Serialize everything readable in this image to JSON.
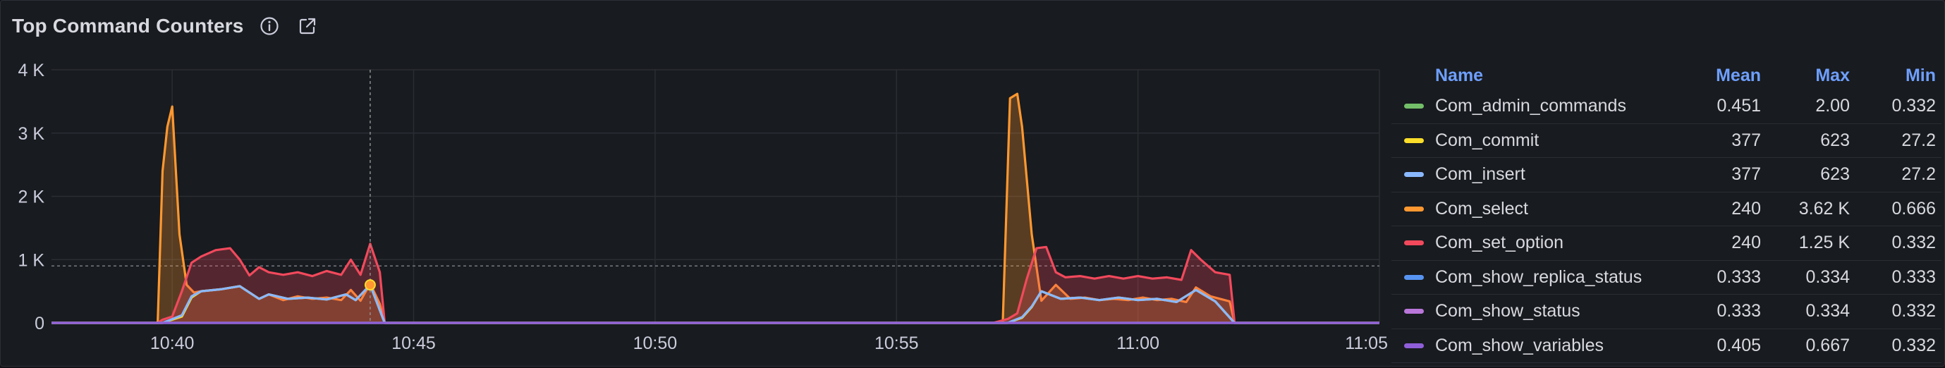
{
  "panel": {
    "title": "Top Command Counters",
    "info_icon": "info-circle-icon",
    "link_icon": "external-link-icon"
  },
  "colors": {
    "background": "#181b1f",
    "grid": "#2a2d33",
    "axis_text": "#ccccdc",
    "header_blue": "#6e9fff"
  },
  "legend": {
    "columns": [
      "Name",
      "Mean",
      "Max",
      "Min"
    ],
    "rows": [
      {
        "name": "Com_admin_commands",
        "color": "#73bf69",
        "mean": "0.451",
        "max": "2.00",
        "min": "0.332"
      },
      {
        "name": "Com_commit",
        "color": "#fade2a",
        "mean": "377",
        "max": "623",
        "min": "27.2"
      },
      {
        "name": "Com_insert",
        "color": "#8ab8ff",
        "mean": "377",
        "max": "623",
        "min": "27.2"
      },
      {
        "name": "Com_select",
        "color": "#ff9830",
        "mean": "240",
        "max": "3.62 K",
        "min": "0.666"
      },
      {
        "name": "Com_set_option",
        "color": "#f2495c",
        "mean": "240",
        "max": "1.25 K",
        "min": "0.332"
      },
      {
        "name": "Com_show_replica_status",
        "color": "#5794f2",
        "mean": "0.333",
        "max": "0.334",
        "min": "0.333"
      },
      {
        "name": "Com_show_status",
        "color": "#b877d9",
        "mean": "0.333",
        "max": "0.334",
        "min": "0.332"
      },
      {
        "name": "Com_show_variables",
        "color": "#8f5fd9",
        "mean": "0.405",
        "max": "0.667",
        "min": "0.332"
      }
    ]
  },
  "chart_data": {
    "type": "area",
    "title": "Top Command Counters",
    "xlabel": "",
    "ylabel": "",
    "ylim": [
      0,
      4000
    ],
    "y_ticks": [
      {
        "value": 0,
        "label": "0"
      },
      {
        "value": 1000,
        "label": "1 K"
      },
      {
        "value": 2000,
        "label": "2 K"
      },
      {
        "value": 3000,
        "label": "3 K"
      },
      {
        "value": 4000,
        "label": "4 K"
      }
    ],
    "x_unit": "minutes after 10:00",
    "xlim": [
      37.5,
      65.0
    ],
    "x_ticks": [
      {
        "value": 40,
        "label": "10:40"
      },
      {
        "value": 45,
        "label": "10:45"
      },
      {
        "value": 50,
        "label": "10:50"
      },
      {
        "value": 55,
        "label": "10:55"
      },
      {
        "value": 60,
        "label": "11:00"
      },
      {
        "value": 65,
        "label": "11:05"
      }
    ],
    "grid": true,
    "legend_position": "right",
    "threshold_line": 900,
    "crosshair_x": 44.1,
    "series": [
      {
        "name": "Com_select",
        "color": "#ff9830",
        "fill": true,
        "x": [
          37.5,
          39.7,
          39.8,
          39.9,
          40.0,
          40.15,
          40.3,
          40.45,
          40.6,
          41.0,
          41.4,
          41.8,
          42.0,
          42.3,
          42.6,
          42.9,
          43.2,
          43.5,
          43.7,
          43.9,
          44.1,
          44.3,
          44.4,
          57.0,
          57.2,
          57.35,
          57.5,
          57.6,
          57.8,
          58.0,
          58.3,
          58.6,
          58.9,
          59.2,
          59.5,
          59.8,
          60.1,
          60.4,
          60.7,
          61.0,
          61.2,
          61.5,
          61.9,
          62.0,
          65.0
        ],
        "y": [
          0,
          0,
          2400,
          3100,
          3420,
          1400,
          600,
          480,
          500,
          530,
          580,
          380,
          450,
          360,
          420,
          380,
          400,
          360,
          520,
          350,
          620,
          300,
          0,
          0,
          0,
          3550,
          3620,
          3100,
          1400,
          350,
          600,
          380,
          400,
          360,
          380,
          360,
          400,
          360,
          380,
          330,
          560,
          420,
          340,
          0,
          0
        ]
      },
      {
        "name": "Com_set_option",
        "color": "#f2495c",
        "fill": true,
        "x": [
          37.5,
          39.7,
          39.8,
          40.0,
          40.2,
          40.4,
          40.6,
          40.9,
          41.2,
          41.4,
          41.6,
          41.8,
          42.0,
          42.3,
          42.6,
          42.9,
          43.2,
          43.5,
          43.7,
          43.9,
          44.1,
          44.3,
          44.4,
          57.0,
          57.3,
          57.5,
          57.7,
          57.9,
          58.1,
          58.3,
          58.5,
          58.8,
          59.1,
          59.4,
          59.7,
          60.0,
          60.3,
          60.6,
          60.9,
          61.1,
          61.3,
          61.6,
          61.9,
          62.0,
          65.0
        ],
        "y": [
          0,
          0,
          50,
          100,
          500,
          950,
          1050,
          1150,
          1180,
          1000,
          750,
          880,
          800,
          760,
          800,
          740,
          820,
          760,
          1000,
          760,
          1250,
          800,
          0,
          0,
          60,
          150,
          700,
          1180,
          1200,
          800,
          720,
          740,
          700,
          740,
          700,
          740,
          700,
          720,
          680,
          1150,
          1000,
          800,
          760,
          0,
          0
        ]
      },
      {
        "name": "Com_commit",
        "color": "#fade2a",
        "fill": false,
        "x": [
          37.5,
          39.8,
          40.2,
          40.4,
          40.6,
          41.0,
          41.4,
          41.8,
          42.0,
          42.4,
          42.8,
          43.2,
          43.6,
          43.8,
          44.1,
          44.4,
          57.3,
          57.6,
          57.8,
          58.0,
          58.4,
          58.8,
          59.2,
          59.6,
          60.0,
          60.4,
          60.8,
          61.2,
          61.6,
          62.0,
          65.0
        ],
        "y": [
          0,
          0,
          100,
          400,
          500,
          530,
          580,
          380,
          450,
          380,
          400,
          370,
          450,
          360,
          600,
          0,
          0,
          80,
          250,
          500,
          380,
          400,
          360,
          400,
          360,
          380,
          330,
          520,
          340,
          0,
          0
        ]
      },
      {
        "name": "Com_insert",
        "color": "#8ab8ff",
        "fill": false,
        "x": [
          37.5,
          39.8,
          40.2,
          40.4,
          40.6,
          41.0,
          41.4,
          41.8,
          42.0,
          42.4,
          42.8,
          43.2,
          43.6,
          43.8,
          44.1,
          44.4,
          57.3,
          57.6,
          57.8,
          58.0,
          58.4,
          58.8,
          59.2,
          59.6,
          60.0,
          60.4,
          60.8,
          61.2,
          61.6,
          62.0,
          65.0
        ],
        "y": [
          0,
          0,
          120,
          420,
          500,
          530,
          580,
          380,
          450,
          380,
          400,
          370,
          450,
          360,
          600,
          0,
          0,
          90,
          260,
          500,
          380,
          400,
          360,
          400,
          360,
          380,
          330,
          520,
          340,
          0,
          0
        ]
      },
      {
        "name": "Com_show_status",
        "color": "#b877d9",
        "fill": false,
        "x": [
          37.5,
          65.0
        ],
        "y": [
          0,
          0
        ]
      },
      {
        "name": "Com_admin_commands",
        "color": "#73bf69",
        "fill": false,
        "x": [
          37.5,
          65.0
        ],
        "y": [
          0,
          0
        ]
      },
      {
        "name": "Com_show_variables",
        "color": "#8f5fd9",
        "fill": false,
        "x": [
          37.5,
          65.0
        ],
        "y": [
          0,
          0
        ]
      }
    ],
    "marker": {
      "series": "Com_commit",
      "x": 44.1,
      "y": 600
    }
  }
}
